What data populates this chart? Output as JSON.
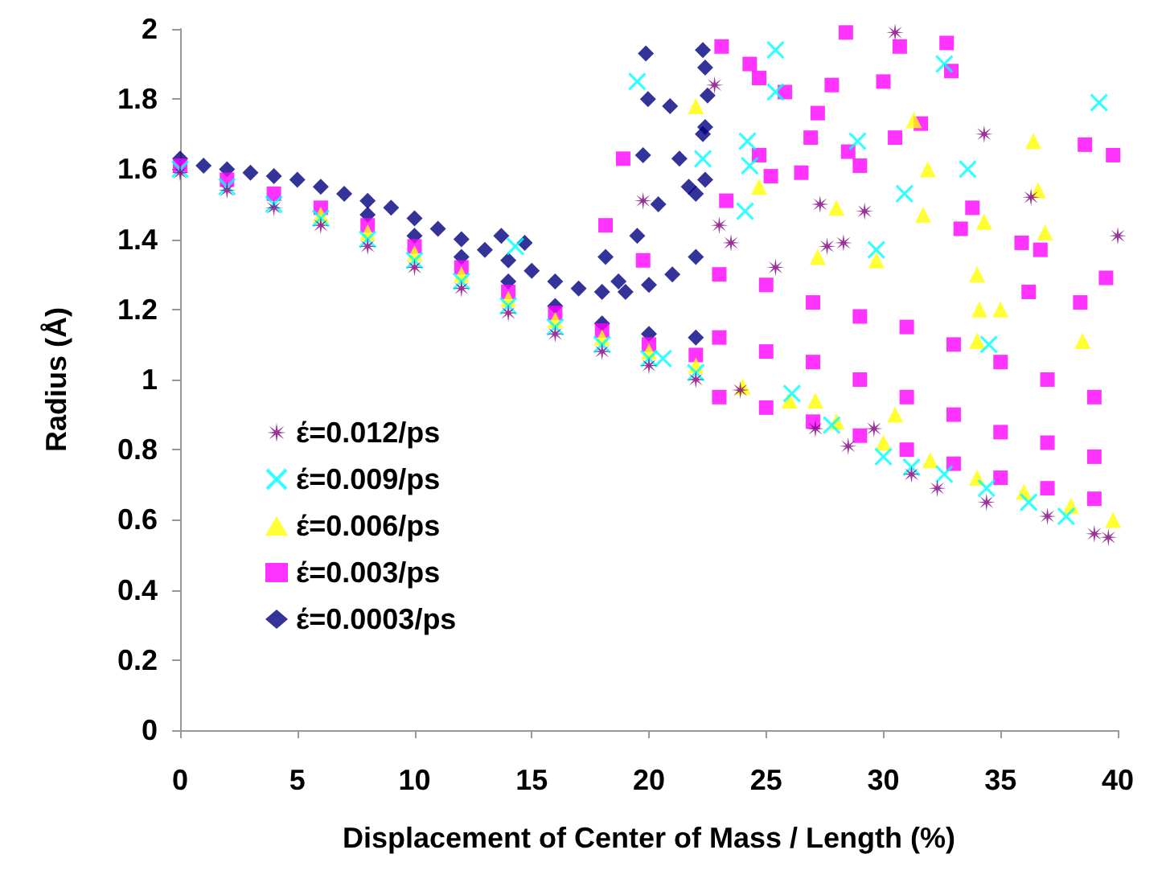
{
  "chart_data": {
    "type": "scatter",
    "xlabel": "Displacement of Center of Mass / Length (%)",
    "ylabel": "Radius (Å)",
    "xlim": [
      0,
      40
    ],
    "ylim": [
      0,
      2
    ],
    "xticks": [
      0,
      5,
      10,
      15,
      20,
      25,
      30,
      35,
      40
    ],
    "yticks": [
      0,
      0.2,
      0.4,
      0.6,
      0.8,
      1,
      1.2,
      1.4,
      1.6,
      1.8,
      2
    ],
    "grid": false,
    "legend": "bottom left",
    "series": [
      {
        "name": "έ=0.012/ps",
        "color": "#800080",
        "marker": "star",
        "x": [
          0,
          2,
          4,
          6,
          8,
          10,
          12,
          14,
          16,
          18,
          20,
          22,
          23.9,
          27.1,
          28.5,
          29.6,
          31.2,
          32.3,
          34.4,
          37,
          39,
          39.6,
          30.5,
          22.8,
          34.3,
          19.75,
          36.3,
          40,
          29.2,
          27.3,
          23,
          23.5,
          27.6,
          28.3,
          25.4
        ],
        "values": [
          1.59,
          1.54,
          1.49,
          1.44,
          1.38,
          1.32,
          1.26,
          1.19,
          1.13,
          1.08,
          1.04,
          1,
          0.97,
          0.86,
          0.81,
          0.86,
          0.73,
          0.69,
          0.65,
          0.61,
          0.56,
          0.55,
          1.99,
          1.84,
          1.7,
          1.51,
          1.52,
          1.41,
          1.48,
          1.5,
          1.44,
          1.39,
          1.38,
          1.39,
          1.32
        ]
      },
      {
        "name": "έ=0.009/ps",
        "color": "#00ffff",
        "marker": "cross",
        "x": [
          0,
          2,
          4,
          6,
          8,
          10,
          12,
          14,
          16,
          18,
          20,
          22,
          20.6,
          26.1,
          27.8,
          30,
          31.2,
          32.6,
          34.4,
          36.2,
          37.8,
          34.5,
          25.4,
          19.5,
          32.6,
          39.2,
          25.4,
          24.2,
          28.9,
          22.3,
          24.3,
          33.6,
          30.9,
          24.1,
          29.7,
          14.3
        ],
        "values": [
          1.6,
          1.55,
          1.5,
          1.46,
          1.4,
          1.34,
          1.28,
          1.21,
          1.15,
          1.1,
          1.06,
          1.02,
          1.06,
          0.96,
          0.87,
          0.78,
          0.75,
          0.73,
          0.69,
          0.65,
          0.61,
          1.1,
          1.94,
          1.85,
          1.9,
          1.79,
          1.82,
          1.68,
          1.68,
          1.63,
          1.61,
          1.6,
          1.53,
          1.48,
          1.37,
          1.38
        ]
      },
      {
        "name": "έ=0.006/ps",
        "color": "#ffff00",
        "marker": "triangle",
        "x": [
          6,
          8,
          10,
          12,
          14,
          16,
          18,
          20,
          22,
          24,
          26,
          28,
          30,
          32,
          34,
          36,
          38,
          39.8,
          27.1,
          30.5,
          38.5,
          34,
          22,
          31.3,
          36.4,
          31.9,
          36.6,
          28,
          31.7,
          34.3,
          36.9,
          27.2,
          29.7,
          34,
          24.7,
          34.1,
          35
        ],
        "values": [
          1.47,
          1.42,
          1.36,
          1.3,
          1.23,
          1.17,
          1.12,
          1.08,
          1.04,
          0.98,
          0.94,
          0.88,
          0.82,
          0.77,
          0.72,
          0.68,
          0.64,
          0.6,
          0.94,
          0.9,
          1.11,
          1.11,
          1.78,
          1.74,
          1.68,
          1.6,
          1.54,
          1.49,
          1.47,
          1.45,
          1.42,
          1.35,
          1.34,
          1.3,
          1.55,
          1.2,
          1.2
        ]
      },
      {
        "name": "έ=0.003/ps",
        "color": "#ff00ff",
        "marker": "square",
        "x": [
          0,
          2,
          4,
          6,
          8,
          10,
          12,
          14,
          16,
          18,
          20,
          22,
          23,
          23,
          23,
          25,
          25,
          25,
          27,
          27,
          27,
          29,
          29,
          29,
          31,
          31,
          31,
          33,
          33,
          33,
          35,
          35,
          35,
          37,
          37,
          37,
          39,
          39,
          39,
          28.4,
          32.7,
          30.7,
          23.1,
          32.9,
          30,
          24.3,
          24.7,
          25.8,
          27.8,
          27.2,
          31.6,
          26.9,
          30.5,
          38.6,
          39.8,
          28.5,
          24.7,
          29,
          26.5,
          25.2,
          18.9,
          33.8,
          23.3,
          33.3,
          35.9,
          36.7,
          39.5,
          19.75,
          36.2,
          38.4,
          18.15
        ],
        "values": [
          1.61,
          1.57,
          1.53,
          1.49,
          1.44,
          1.38,
          1.32,
          1.25,
          1.19,
          1.14,
          1.1,
          1.07,
          1.3,
          1.12,
          0.95,
          1.27,
          1.08,
          0.92,
          1.22,
          1.05,
          0.88,
          1.18,
          1,
          0.84,
          1.15,
          0.95,
          0.8,
          1.1,
          0.9,
          0.76,
          1.05,
          0.85,
          0.72,
          1,
          0.82,
          0.69,
          0.95,
          0.78,
          0.66,
          1.99,
          1.96,
          1.95,
          1.95,
          1.88,
          1.85,
          1.9,
          1.86,
          1.82,
          1.84,
          1.76,
          1.73,
          1.69,
          1.69,
          1.67,
          1.64,
          1.65,
          1.64,
          1.61,
          1.59,
          1.58,
          1.63,
          1.49,
          1.51,
          1.43,
          1.39,
          1.37,
          1.29,
          1.34,
          1.25,
          1.22,
          1.44
        ]
      },
      {
        "name": "έ=0.0003/ps",
        "color": "#000080",
        "marker": "diamond",
        "x": [
          0,
          1,
          2,
          3,
          4,
          5,
          6,
          7,
          8,
          9,
          10,
          11,
          12,
          13,
          14,
          15,
          16,
          17,
          18,
          19,
          20,
          21,
          22,
          8,
          10,
          12,
          14,
          16,
          18,
          20,
          22,
          19.87,
          19.96,
          20.9,
          19.75,
          19.5,
          18.15,
          18.7,
          14.7,
          13.7,
          22.3,
          22.4,
          22.5,
          22.4,
          22.3,
          21.3,
          21.7,
          22.4,
          20.4,
          22
        ],
        "values": [
          1.63,
          1.61,
          1.6,
          1.59,
          1.58,
          1.57,
          1.55,
          1.53,
          1.51,
          1.49,
          1.46,
          1.43,
          1.4,
          1.37,
          1.34,
          1.31,
          1.28,
          1.26,
          1.25,
          1.25,
          1.27,
          1.3,
          1.35,
          1.47,
          1.41,
          1.35,
          1.28,
          1.21,
          1.16,
          1.13,
          1.12,
          1.93,
          1.8,
          1.78,
          1.64,
          1.41,
          1.35,
          1.28,
          1.39,
          1.41,
          1.94,
          1.89,
          1.81,
          1.72,
          1.7,
          1.63,
          1.55,
          1.57,
          1.5,
          1.53
        ]
      }
    ]
  }
}
